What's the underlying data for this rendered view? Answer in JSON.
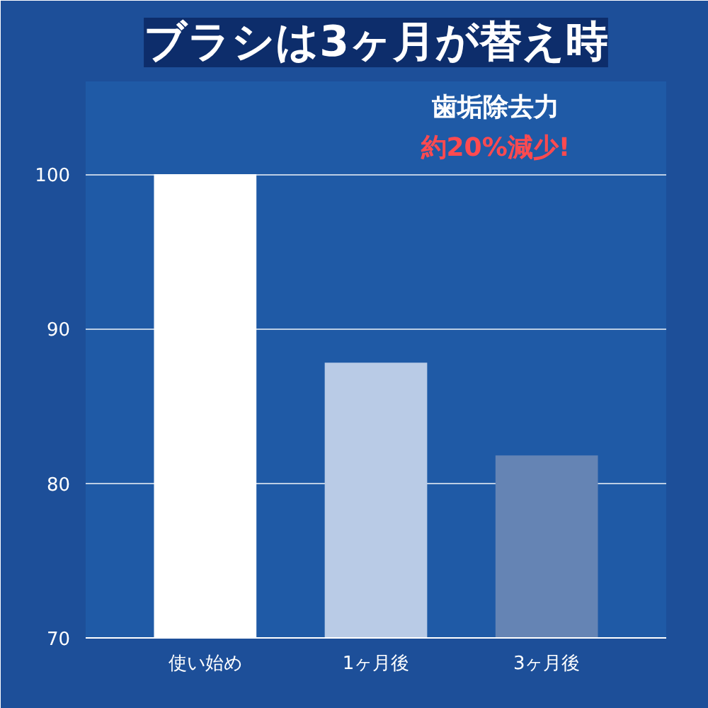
{
  "chart_data": {
    "type": "bar",
    "title": "ブラシは3ヶ月が替え時",
    "categories": [
      "使い始め",
      "1ヶ月後",
      "3ヶ月後"
    ],
    "values": [
      100,
      87.8,
      81.8
    ],
    "colors": [
      "#ffffff",
      "#b9cbe6",
      "#6584b4"
    ],
    "ylim": [
      70,
      106
    ],
    "yticks": [
      70,
      80,
      90,
      100
    ],
    "grid": "y",
    "annotations": [
      "歯垢除去力",
      "約20%減少!"
    ]
  }
}
